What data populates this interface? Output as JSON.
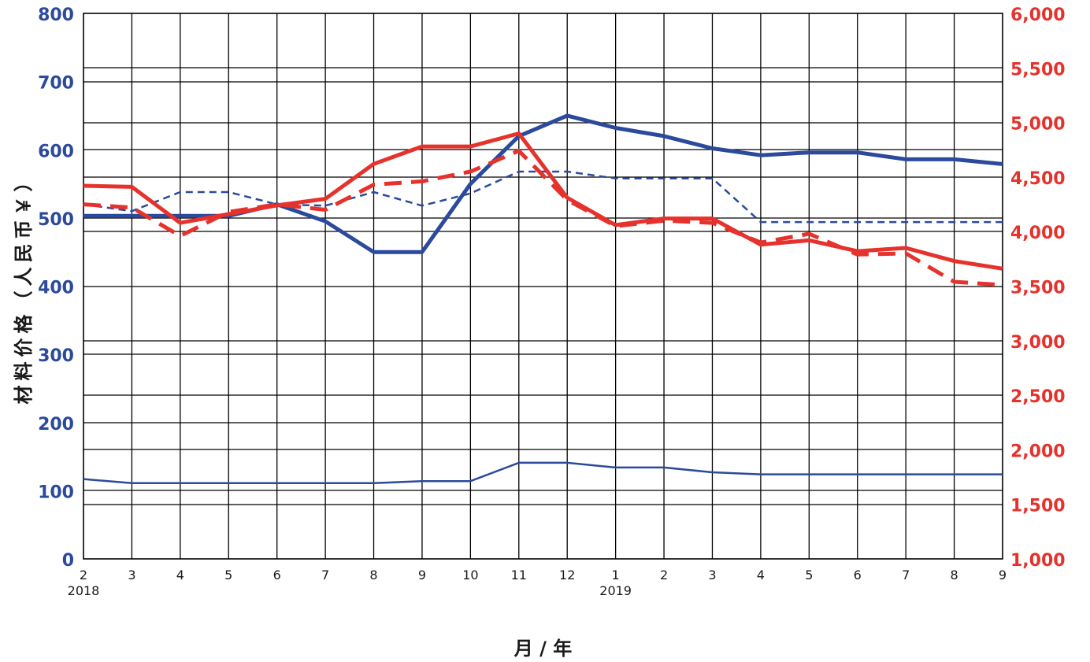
{
  "chart_data": {
    "type": "line",
    "xlabel": "月 / 年",
    "ylabel": "材料价格（人民币￥）",
    "ylabel_right": "",
    "x_categories": [
      "2",
      "3",
      "4",
      "5",
      "6",
      "7",
      "8",
      "9",
      "10",
      "11",
      "12",
      "1",
      "2",
      "3",
      "4",
      "5",
      "6",
      "7",
      "8",
      "9"
    ],
    "year_labels": [
      {
        "index": 0,
        "label": "2018"
      },
      {
        "index": 11,
        "label": "2019"
      }
    ],
    "ylim_left": [
      0,
      800
    ],
    "ylim_right": [
      1000,
      6000
    ],
    "yticks_left": [
      "0",
      "100",
      "200",
      "300",
      "400",
      "500",
      "600",
      "700",
      "800"
    ],
    "yticks_right": [
      "1,000",
      "1,500",
      "2,000",
      "2,500",
      "3,000",
      "3,500",
      "4,000",
      "4,500",
      "5,000",
      "5,500",
      "6,000"
    ],
    "grid": true,
    "colors": {
      "left_axis": "#2b4a9b",
      "right_axis": "#e6322d",
      "grid": "#000000"
    },
    "series": [
      {
        "axis": "left",
        "style": "solid-thick",
        "color": "#2b4a9b",
        "values": [
          503,
          503,
          503,
          503,
          520,
          495,
          450,
          450,
          550,
          620,
          650,
          632,
          620,
          602,
          592,
          596,
          596,
          586,
          586,
          579
        ]
      },
      {
        "axis": "left",
        "style": "dashed-thin",
        "color": "#2b4a9b",
        "values": [
          520,
          510,
          538,
          538,
          520,
          518,
          538,
          518,
          536,
          568,
          568,
          558,
          558,
          558,
          494,
          494,
          494,
          494,
          494,
          494
        ]
      },
      {
        "axis": "left",
        "style": "solid-thin",
        "color": "#2b4a9b",
        "values": [
          117,
          111,
          111,
          111,
          111,
          111,
          111,
          114,
          114,
          141,
          141,
          134,
          134,
          127,
          124,
          124,
          124,
          124,
          124,
          124
        ]
      },
      {
        "axis": "right",
        "style": "solid-thick",
        "color": "#e6322d",
        "values": [
          4420,
          4410,
          4080,
          4160,
          4240,
          4300,
          4620,
          4780,
          4780,
          4900,
          4310,
          4060,
          4120,
          4120,
          3880,
          3920,
          3820,
          3850,
          3730,
          3660
        ]
      },
      {
        "axis": "right",
        "style": "dashed-thick",
        "color": "#e6322d",
        "values": [
          4250,
          4220,
          3960,
          4180,
          4250,
          4200,
          4430,
          4460,
          4550,
          4740,
          4290,
          4050,
          4100,
          4080,
          3900,
          3980,
          3790,
          3800,
          3540,
          3510
        ]
      }
    ]
  }
}
